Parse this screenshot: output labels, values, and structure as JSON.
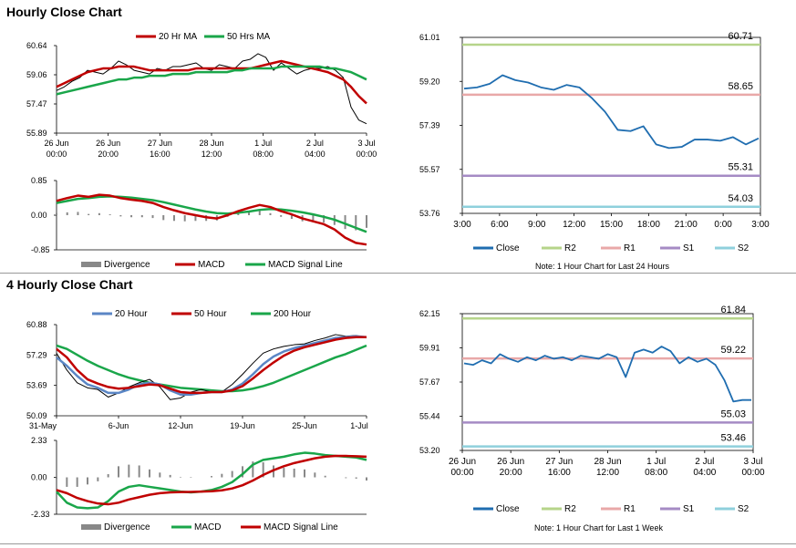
{
  "sections": {
    "hourly_title": "Hourly Close Chart",
    "four_hourly_title": "4 Hourly Close Chart"
  },
  "colors": {
    "ma_fast": "#c00000",
    "ma_slow": "#1aa64a",
    "ma_200": "#1aa64a",
    "ma_20_4h": "#5b86c5",
    "price": "#000000",
    "close_line": "#1f6db0",
    "r2": "#b6d48a",
    "r1": "#e9a8a8",
    "s1": "#a58bc4",
    "s2": "#8fd0dc",
    "divergence": "#888888"
  },
  "chart_data": [
    {
      "id": "hourly_price",
      "type": "line",
      "legend": [
        "20 Hr MA",
        "50 Hrs MA"
      ],
      "y_ticks": [
        "60.64",
        "59.06",
        "57.47",
        "55.89"
      ],
      "ylim": [
        55.89,
        60.64
      ],
      "x_ticks": [
        [
          "26 Jun",
          "00:00"
        ],
        [
          "26 Jun",
          "20:00"
        ],
        [
          "27 Jun",
          "16:00"
        ],
        [
          "28 Jun",
          "12:00"
        ],
        [
          "1 Jul",
          "08:00"
        ],
        [
          "2 Jul",
          "04:00"
        ],
        [
          "3 Jul",
          "00:00"
        ]
      ],
      "series": [
        {
          "name": "Price",
          "values": [
            58.2,
            58.4,
            58.7,
            58.9,
            59.3,
            59.2,
            59.1,
            59.4,
            59.8,
            59.6,
            59.3,
            59.2,
            59.1,
            59.4,
            59.3,
            59.5,
            59.5,
            59.6,
            59.7,
            59.4,
            59.3,
            59.6,
            59.5,
            59.4,
            59.8,
            59.9,
            60.2,
            60.0,
            59.3,
            59.7,
            59.4,
            59.1,
            59.3,
            59.4,
            59.4,
            59.5,
            59.3,
            58.9,
            57.3,
            56.6,
            56.4
          ]
        },
        {
          "name": "20 Hr MA",
          "values": [
            58.4,
            58.6,
            58.8,
            59.0,
            59.2,
            59.3,
            59.4,
            59.4,
            59.5,
            59.5,
            59.5,
            59.4,
            59.3,
            59.3,
            59.3,
            59.3,
            59.3,
            59.3,
            59.4,
            59.4,
            59.4,
            59.4,
            59.4,
            59.4,
            59.4,
            59.4,
            59.5,
            59.6,
            59.7,
            59.8,
            59.7,
            59.6,
            59.5,
            59.4,
            59.3,
            59.2,
            59.0,
            58.8,
            58.4,
            57.9,
            57.5
          ]
        },
        {
          "name": "50 Hrs MA",
          "values": [
            58.0,
            58.1,
            58.2,
            58.3,
            58.4,
            58.5,
            58.6,
            58.7,
            58.8,
            58.8,
            58.9,
            58.9,
            59.0,
            59.0,
            59.0,
            59.1,
            59.1,
            59.1,
            59.2,
            59.2,
            59.2,
            59.2,
            59.2,
            59.3,
            59.3,
            59.4,
            59.4,
            59.4,
            59.4,
            59.5,
            59.5,
            59.5,
            59.5,
            59.5,
            59.5,
            59.4,
            59.4,
            59.3,
            59.2,
            59.0,
            58.8
          ]
        }
      ]
    },
    {
      "id": "hourly_macd",
      "type": "line",
      "legend": [
        "Divergence",
        "MACD",
        "MACD Signal Line"
      ],
      "y_ticks": [
        "0.85",
        "0.00",
        "-0.85"
      ],
      "ylim": [
        -0.85,
        0.85
      ],
      "series": [
        {
          "name": "MACD",
          "values": [
            0.35,
            0.42,
            0.48,
            0.45,
            0.5,
            0.48,
            0.42,
            0.38,
            0.35,
            0.3,
            0.2,
            0.12,
            0.05,
            0.0,
            -0.05,
            -0.08,
            0.0,
            0.1,
            0.18,
            0.25,
            0.2,
            0.1,
            0.02,
            -0.08,
            -0.15,
            -0.22,
            -0.35,
            -0.55,
            -0.68,
            -0.72
          ]
        },
        {
          "name": "MACD Signal Line",
          "values": [
            0.3,
            0.35,
            0.4,
            0.42,
            0.45,
            0.46,
            0.45,
            0.43,
            0.4,
            0.37,
            0.32,
            0.26,
            0.2,
            0.14,
            0.09,
            0.05,
            0.04,
            0.06,
            0.09,
            0.13,
            0.15,
            0.14,
            0.11,
            0.07,
            0.02,
            -0.04,
            -0.11,
            -0.21,
            -0.31,
            -0.41
          ]
        },
        {
          "name": "Divergence",
          "values": [
            0.05,
            0.07,
            0.08,
            0.03,
            0.05,
            0.02,
            -0.03,
            -0.05,
            -0.05,
            -0.07,
            -0.12,
            -0.14,
            -0.15,
            -0.14,
            -0.14,
            -0.13,
            -0.04,
            0.04,
            0.09,
            0.12,
            0.05,
            -0.04,
            -0.09,
            -0.15,
            -0.17,
            -0.18,
            -0.24,
            -0.34,
            -0.37,
            -0.31
          ]
        }
      ]
    },
    {
      "id": "hourly_pivot",
      "type": "line",
      "y_ticks": [
        "61.01",
        "59.20",
        "57.39",
        "55.57",
        "53.76"
      ],
      "ylim": [
        53.76,
        61.01
      ],
      "x_ticks": [
        "3:00",
        "6:00",
        "9:00",
        "12:00",
        "15:00",
        "18:00",
        "21:00",
        "0:00",
        "3:00"
      ],
      "levels": [
        {
          "name": "R2",
          "value": 60.71,
          "label": "60.71"
        },
        {
          "name": "R1",
          "value": 58.65,
          "label": "58.65"
        },
        {
          "name": "S1",
          "value": 55.31,
          "label": "55.31"
        },
        {
          "name": "S2",
          "value": 54.03,
          "label": "54.03"
        }
      ],
      "series": [
        {
          "name": "Close",
          "values": [
            58.9,
            58.95,
            59.1,
            59.45,
            59.25,
            59.15,
            58.95,
            58.85,
            59.05,
            58.95,
            58.5,
            57.95,
            57.2,
            57.15,
            57.35,
            56.6,
            56.45,
            56.5,
            56.8,
            56.8,
            56.75,
            56.9,
            56.6,
            56.85
          ]
        }
      ],
      "legend": [
        "Close",
        "R2",
        "R1",
        "S1",
        "S2"
      ],
      "note": "Note: 1 Hour Chart for Last 24 Hours"
    },
    {
      "id": "four_hourly_price",
      "type": "line",
      "legend": [
        "20 Hour",
        "50 Hour",
        "200 Hour"
      ],
      "y_ticks": [
        "60.88",
        "57.29",
        "53.69",
        "50.09"
      ],
      "ylim": [
        50.09,
        60.88
      ],
      "x_ticks": [
        "31-May",
        "6-Jun",
        "12-Jun",
        "19-Jun",
        "25-Jun",
        "1-Jul"
      ],
      "series": [
        {
          "name": "Price",
          "values": [
            57.5,
            55.5,
            54.0,
            53.4,
            53.2,
            52.3,
            52.8,
            53.5,
            54.0,
            54.4,
            53.5,
            52.0,
            52.2,
            52.9,
            53.2,
            52.9,
            52.9,
            53.8,
            55.0,
            56.3,
            57.5,
            58.0,
            58.3,
            58.5,
            58.6,
            59.0,
            59.3,
            59.7,
            59.5,
            59.6,
            59.3
          ]
        },
        {
          "name": "20 Hour",
          "values": [
            57.0,
            56.0,
            54.8,
            53.8,
            53.4,
            52.8,
            52.8,
            53.2,
            53.8,
            54.0,
            53.8,
            53.1,
            52.6,
            52.6,
            52.8,
            52.9,
            52.9,
            53.2,
            53.9,
            55.0,
            56.2,
            57.1,
            57.7,
            58.1,
            58.4,
            58.7,
            59.0,
            59.3,
            59.4,
            59.5,
            59.4
          ]
        },
        {
          "name": "50 Hour",
          "values": [
            58.0,
            57.0,
            55.5,
            54.4,
            53.9,
            53.5,
            53.3,
            53.4,
            53.6,
            53.8,
            53.7,
            53.3,
            52.9,
            52.8,
            52.8,
            52.9,
            52.9,
            53.1,
            53.6,
            54.5,
            55.5,
            56.4,
            57.2,
            57.8,
            58.2,
            58.5,
            58.8,
            59.1,
            59.3,
            59.4,
            59.4
          ]
        },
        {
          "name": "200 Hour",
          "values": [
            58.4,
            58.0,
            57.3,
            56.6,
            56.0,
            55.5,
            55.0,
            54.6,
            54.3,
            54.0,
            53.8,
            53.6,
            53.4,
            53.3,
            53.2,
            53.1,
            53.0,
            53.0,
            53.1,
            53.3,
            53.6,
            54.0,
            54.5,
            55.0,
            55.5,
            56.0,
            56.5,
            57.0,
            57.4,
            57.9,
            58.4
          ]
        }
      ]
    },
    {
      "id": "four_hourly_macd",
      "type": "line",
      "legend": [
        "Divergence",
        "MACD",
        "MACD Signal Line"
      ],
      "y_ticks": [
        "2.33",
        "0.00",
        "-2.33"
      ],
      "ylim": [
        -2.33,
        2.33
      ],
      "series": [
        {
          "name": "MACD",
          "values": [
            -0.9,
            -1.6,
            -1.9,
            -1.95,
            -1.9,
            -1.5,
            -0.9,
            -0.6,
            -0.5,
            -0.6,
            -0.7,
            -0.8,
            -0.9,
            -0.95,
            -0.9,
            -0.8,
            -0.6,
            -0.3,
            0.2,
            0.8,
            1.1,
            1.2,
            1.3,
            1.45,
            1.55,
            1.5,
            1.4,
            1.35,
            1.3,
            1.25,
            1.1
          ]
        },
        {
          "name": "MACD Signal Line",
          "values": [
            -0.8,
            -1.0,
            -1.3,
            -1.5,
            -1.65,
            -1.7,
            -1.6,
            -1.4,
            -1.25,
            -1.1,
            -1.0,
            -0.95,
            -0.93,
            -0.92,
            -0.9,
            -0.88,
            -0.82,
            -0.7,
            -0.5,
            -0.2,
            0.15,
            0.45,
            0.7,
            0.9,
            1.05,
            1.2,
            1.3,
            1.35,
            1.35,
            1.33,
            1.3
          ]
        },
        {
          "name": "Divergence",
          "values": [
            -0.1,
            -0.6,
            -0.6,
            -0.45,
            -0.25,
            0.2,
            0.7,
            0.8,
            0.75,
            0.5,
            0.3,
            0.15,
            0.03,
            -0.03,
            0.0,
            0.08,
            0.22,
            0.4,
            0.7,
            1.0,
            0.95,
            0.75,
            0.6,
            0.55,
            0.5,
            0.3,
            0.1,
            0.0,
            -0.05,
            -0.08,
            -0.2
          ]
        }
      ]
    },
    {
      "id": "weekly_pivot",
      "type": "line",
      "y_ticks": [
        "62.15",
        "59.91",
        "57.67",
        "55.44",
        "53.20"
      ],
      "ylim": [
        53.2,
        62.15
      ],
      "x_ticks": [
        [
          "26 Jun",
          "00:00"
        ],
        [
          "26 Jun",
          "20:00"
        ],
        [
          "27 Jun",
          "16:00"
        ],
        [
          "28 Jun",
          "12:00"
        ],
        [
          "1 Jul",
          "08:00"
        ],
        [
          "2 Jul",
          "04:00"
        ],
        [
          "3 Jul",
          "00:00"
        ]
      ],
      "levels": [
        {
          "name": "R2",
          "value": 61.84,
          "label": "61.84"
        },
        {
          "name": "R1",
          "value": 59.22,
          "label": "59.22"
        },
        {
          "name": "S1",
          "value": 55.03,
          "label": "55.03"
        },
        {
          "name": "S2",
          "value": 53.46,
          "label": "53.46"
        }
      ],
      "series": [
        {
          "name": "Close",
          "values": [
            58.9,
            58.8,
            59.1,
            58.9,
            59.5,
            59.2,
            59.0,
            59.3,
            59.1,
            59.4,
            59.2,
            59.3,
            59.1,
            59.4,
            59.3,
            59.2,
            59.5,
            59.3,
            58.0,
            59.6,
            59.8,
            59.6,
            60.0,
            59.7,
            58.9,
            59.3,
            59.0,
            59.2,
            58.8,
            57.8,
            56.4,
            56.5,
            56.5
          ]
        }
      ],
      "legend": [
        "Close",
        "R2",
        "R1",
        "S1",
        "S2"
      ],
      "note": "Note: 1 Hour Chart for Last 1 Week"
    }
  ]
}
